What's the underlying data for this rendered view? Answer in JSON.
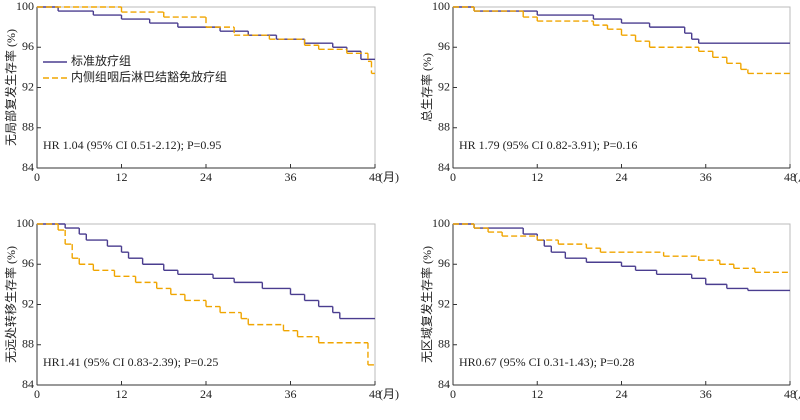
{
  "chart_data": [
    {
      "type": "step",
      "y_label": "无局部复发生存率 (%)",
      "x_unit": "(月)",
      "annotation": "HR 1.04 (95% CI 0.51-2.12); P=0.95",
      "xlim": [
        0,
        48
      ],
      "ylim": [
        84,
        100
      ],
      "xticks": [
        0,
        12,
        24,
        36,
        48
      ],
      "yticks": [
        84,
        88,
        92,
        96,
        100
      ],
      "legend": "left",
      "series": [
        {
          "name": "标准放疗组",
          "color": "#4a3d8f",
          "linestyle": "solid",
          "x": [
            0,
            3,
            8,
            12,
            16,
            20,
            26,
            30,
            34,
            38,
            42,
            44,
            46,
            48
          ],
          "values": [
            100,
            99.6,
            99.2,
            98.8,
            98.4,
            98,
            97.6,
            97.2,
            96.8,
            96.4,
            96,
            95.6,
            94.8,
            94.8
          ]
        },
        {
          "name": "内侧组咽后淋巴结豁免放疗组",
          "color": "#f0a500",
          "linestyle": "dashed",
          "x": [
            0,
            12,
            18,
            24,
            28,
            33,
            38,
            40,
            44,
            47,
            47.5,
            48
          ],
          "values": [
            100,
            99.5,
            99,
            98,
            97.2,
            96.8,
            96.2,
            95.8,
            95.4,
            94.6,
            93.4,
            93.4
          ]
        }
      ]
    },
    {
      "type": "step",
      "y_label": "总生存率 (%)",
      "x_unit": "(月)",
      "annotation": "HR 1.79 (95% CI 0.82-3.91); P=0.16",
      "xlim": [
        0,
        48
      ],
      "ylim": [
        84,
        100
      ],
      "xticks": [
        0,
        12,
        24,
        36,
        48
      ],
      "yticks": [
        84,
        88,
        92,
        96,
        100
      ],
      "series": [
        {
          "color": "#4a3d8f",
          "linestyle": "solid",
          "x": [
            0,
            3,
            12,
            20,
            24,
            28,
            33,
            34,
            35,
            48
          ],
          "values": [
            100,
            99.6,
            99.2,
            98.8,
            98.4,
            98,
            97.4,
            96.8,
            96.4,
            96.4
          ]
        },
        {
          "color": "#f0a500",
          "linestyle": "dashed",
          "x": [
            0,
            3,
            10,
            12,
            20,
            22,
            24,
            26,
            28,
            35,
            37,
            39,
            41,
            42,
            48
          ],
          "values": [
            100,
            99.6,
            99,
            98.6,
            98.2,
            97.8,
            97.2,
            96.6,
            96,
            95.6,
            95,
            94.4,
            93.8,
            93.4,
            93.4
          ]
        }
      ]
    },
    {
      "type": "step",
      "y_label": "无远处转移生存率 (%)",
      "x_unit": "(月)",
      "annotation": "HR1.41 (95% CI 0.83-2.39); P=0.25",
      "xlim": [
        0,
        48
      ],
      "ylim": [
        84,
        100
      ],
      "xticks": [
        0,
        12,
        24,
        36,
        48
      ],
      "yticks": [
        84,
        88,
        92,
        96,
        100
      ],
      "series": [
        {
          "color": "#4a3d8f",
          "linestyle": "solid",
          "x": [
            0,
            4,
            6,
            7,
            10,
            12,
            13,
            15,
            18,
            20,
            25,
            28,
            32,
            36,
            38,
            40,
            42,
            43,
            48
          ],
          "values": [
            100,
            99.6,
            99,
            98.4,
            97.8,
            97.2,
            96.6,
            96,
            95.4,
            95,
            94.6,
            94.2,
            93.6,
            93,
            92.4,
            91.8,
            91.2,
            90.6,
            90.6
          ]
        },
        {
          "color": "#f0a500",
          "linestyle": "dashed",
          "x": [
            0,
            3,
            4,
            5,
            6,
            8,
            11,
            14,
            17,
            19,
            21,
            24,
            26,
            29,
            30,
            35,
            37,
            40,
            47,
            48
          ],
          "values": [
            100,
            99.4,
            98,
            96.6,
            96,
            95.4,
            94.8,
            94.2,
            93.6,
            93,
            92.4,
            91.8,
            91.2,
            90.6,
            90,
            89.4,
            88.8,
            88.2,
            86,
            86
          ]
        }
      ]
    },
    {
      "type": "step",
      "y_label": "无区域复发生存率 (%)",
      "x_unit": "(月)",
      "annotation": "HR0.67 (95% CI 0.31-1.43); P=0.28",
      "xlim": [
        0,
        48
      ],
      "ylim": [
        84,
        100
      ],
      "xticks": [
        0,
        12,
        24,
        36,
        48
      ],
      "yticks": [
        84,
        88,
        92,
        96,
        100
      ],
      "series": [
        {
          "color": "#4a3d8f",
          "linestyle": "solid",
          "x": [
            0,
            3,
            10,
            12,
            13,
            14,
            16,
            19,
            24,
            26,
            29,
            34,
            36,
            39,
            42,
            48
          ],
          "values": [
            100,
            99.6,
            99,
            98.4,
            97.8,
            97.2,
            96.6,
            96.2,
            95.8,
            95.4,
            95,
            94.6,
            94,
            93.6,
            93.4,
            93.4
          ]
        },
        {
          "color": "#f0a500",
          "linestyle": "dashed",
          "x": [
            0,
            3,
            5,
            7,
            12,
            15,
            19,
            21,
            30,
            35,
            38,
            40,
            43,
            48
          ],
          "values": [
            100,
            99.6,
            99.2,
            98.8,
            98.4,
            98,
            97.6,
            97.2,
            96.8,
            96.4,
            96,
            95.6,
            95.2,
            95.2
          ]
        }
      ]
    }
  ]
}
